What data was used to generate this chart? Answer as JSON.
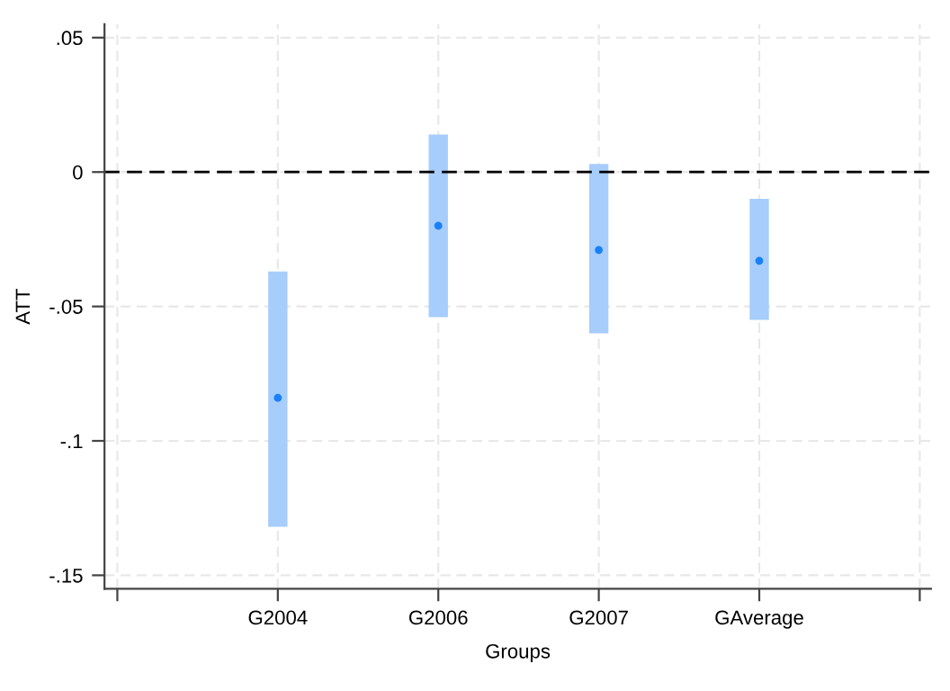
{
  "chart_data": {
    "type": "bar",
    "xlabel": "Groups",
    "ylabel": "ATT",
    "categories": [
      "G2004",
      "G2006",
      "G2007",
      "GAverage"
    ],
    "series": [
      {
        "color": "#a6cdfb",
        "base": [
          -0.132,
          -0.054,
          -0.06,
          -0.055
        ],
        "values": [
          0.095,
          0.068,
          0.063,
          0.045
        ]
      },
      {
        "type": "scatter",
        "color": "#1a80f7",
        "x": [
          "G2004",
          "G2006",
          "G2007",
          "GAverage"
        ],
        "values": [
          -0.084,
          -0.02,
          -0.029,
          -0.033
        ],
        "marker": "circle"
      }
    ],
    "ylim": [
      -0.155,
      0.055
    ],
    "yticks": [
      {
        "value": -0.15,
        "label": "-.15"
      },
      {
        "value": -0.1,
        "label": "-.1"
      },
      {
        "value": -0.05,
        "label": "-.05"
      },
      0,
      {
        "value": 0.05,
        "label": ".05"
      }
    ],
    "ref_lines": [
      {
        "axis": "y",
        "value": 0,
        "color": "#000000",
        "line_style": "dashed"
      }
    ],
    "grid": true
  }
}
